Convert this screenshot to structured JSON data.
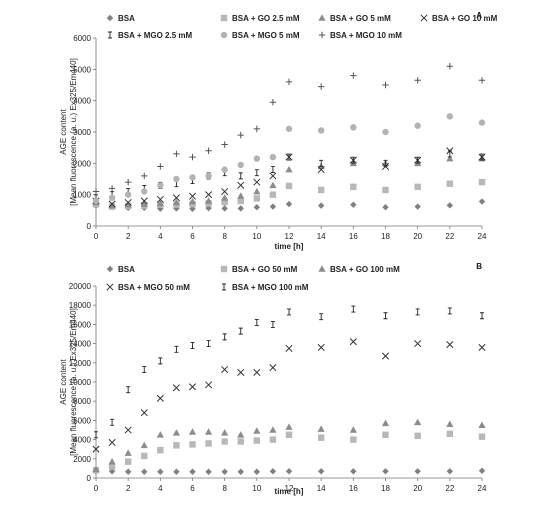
{
  "chart_data": [
    {
      "type": "scatter",
      "panel_label": "A",
      "xlabel": "time [h]",
      "ylabel_lines": [
        "AGE content",
        "[Mean fluorescence (a. u.) Ex325/Em440]"
      ],
      "xlim": [
        0,
        24
      ],
      "ylim": [
        0,
        6000
      ],
      "xticks": [
        0,
        2,
        4,
        6,
        8,
        10,
        12,
        14,
        16,
        18,
        20,
        22,
        24
      ],
      "yticks": [
        0,
        1000,
        2000,
        3000,
        4000,
        5000,
        6000
      ],
      "grid": false,
      "legend_position": "top",
      "series": [
        {
          "name": "BSA",
          "marker": "diamond",
          "color": "#808080",
          "x": [
            0,
            1,
            2,
            3,
            4,
            5,
            6,
            7,
            8,
            9,
            10,
            11,
            12,
            14,
            16,
            18,
            20,
            22,
            24
          ],
          "y": [
            650,
            600,
            580,
            580,
            550,
            560,
            550,
            570,
            560,
            560,
            600,
            620,
            700,
            650,
            680,
            600,
            620,
            660,
            780
          ]
        },
        {
          "name": "BSA + GO 2.5 mM",
          "marker": "square",
          "color": "#b8b8b8",
          "x": [
            0,
            1,
            2,
            3,
            4,
            5,
            6,
            7,
            8,
            9,
            10,
            11,
            12,
            14,
            16,
            18,
            20,
            22,
            24
          ],
          "y": [
            700,
            620,
            640,
            650,
            680,
            680,
            700,
            720,
            760,
            800,
            880,
            1000,
            1280,
            1150,
            1250,
            1150,
            1250,
            1350,
            1400
          ]
        },
        {
          "name": "BSA + GO 5 mM",
          "marker": "triangle",
          "color": "#8c8c8c",
          "x": [
            0,
            1,
            2,
            3,
            4,
            5,
            6,
            7,
            8,
            9,
            10,
            11,
            12,
            14,
            16,
            18,
            20,
            22,
            24
          ],
          "y": [
            750,
            650,
            680,
            700,
            720,
            750,
            780,
            800,
            900,
            960,
            1100,
            1300,
            1800,
            1900,
            2000,
            2000,
            2000,
            2150,
            2150
          ]
        },
        {
          "name": "BSA + GO 10 mM",
          "marker": "x",
          "color": "#333333",
          "x": [
            0,
            1,
            2,
            3,
            4,
            5,
            6,
            7,
            8,
            9,
            10,
            11,
            12,
            14,
            16,
            18,
            20,
            22,
            24
          ],
          "y": [
            800,
            700,
            750,
            800,
            850,
            900,
            950,
            1000,
            1100,
            1300,
            1400,
            1600,
            2200,
            1800,
            2100,
            1900,
            2100,
            2400,
            2200
          ]
        },
        {
          "name": "BSA + MGO 2.5 mM",
          "marker": "bar",
          "color": "#222222",
          "x": [
            0,
            1,
            2,
            3,
            4,
            5,
            6,
            7,
            8,
            9,
            10,
            11,
            12,
            14,
            16,
            18,
            20,
            22,
            24
          ],
          "y": [
            900,
            1000,
            1100,
            1200,
            1300,
            1350,
            1450,
            1600,
            1700,
            1600,
            1700,
            1800,
            2200,
            2000,
            2100,
            2000,
            2100,
            2300,
            2200
          ]
        },
        {
          "name": "BSA + MGO 5 mM",
          "marker": "circle",
          "color": "#b3b3b3",
          "x": [
            0,
            1,
            2,
            3,
            4,
            5,
            6,
            7,
            8,
            9,
            10,
            11,
            12,
            14,
            16,
            18,
            20,
            22,
            24
          ],
          "y": [
            800,
            900,
            1000,
            1100,
            1300,
            1500,
            1550,
            1600,
            1800,
            1950,
            2150,
            2200,
            3100,
            3050,
            3150,
            3000,
            3200,
            3500,
            3300
          ]
        },
        {
          "name": "BSA + MGO 10 mM",
          "marker": "plus",
          "color": "#555555",
          "x": [
            0,
            1,
            2,
            3,
            4,
            5,
            6,
            7,
            8,
            9,
            10,
            11,
            12,
            14,
            16,
            18,
            20,
            22,
            24
          ],
          "y": [
            1100,
            1200,
            1400,
            1600,
            1900,
            2300,
            2200,
            2400,
            2600,
            2900,
            3100,
            3950,
            4600,
            4450,
            4800,
            4500,
            4650,
            5100,
            4650
          ]
        }
      ]
    },
    {
      "type": "scatter",
      "panel_label": "B",
      "xlabel": "time [h]",
      "ylabel_lines": [
        "AGE content",
        "[Mean fluorescence (a. u.) Ex325/Em440]"
      ],
      "xlim": [
        0,
        24
      ],
      "ylim": [
        0,
        20000
      ],
      "xticks": [
        0,
        2,
        4,
        6,
        8,
        10,
        12,
        14,
        16,
        18,
        20,
        22,
        24
      ],
      "yticks": [
        0,
        2000,
        4000,
        6000,
        8000,
        10000,
        12000,
        14000,
        16000,
        18000,
        20000
      ],
      "grid": false,
      "legend_position": "top",
      "series": [
        {
          "name": "BSA",
          "marker": "diamond",
          "color": "#808080",
          "x": [
            0,
            1,
            2,
            3,
            4,
            5,
            6,
            7,
            8,
            9,
            10,
            11,
            12,
            14,
            16,
            18,
            20,
            22,
            24
          ],
          "y": [
            700,
            700,
            650,
            650,
            650,
            650,
            650,
            650,
            650,
            650,
            650,
            700,
            700,
            700,
            700,
            700,
            700,
            700,
            750
          ]
        },
        {
          "name": "BSA + GO 50 mM",
          "marker": "square",
          "color": "#b8b8b8",
          "x": [
            0,
            1,
            2,
            3,
            4,
            5,
            6,
            7,
            8,
            9,
            10,
            11,
            12,
            14,
            16,
            18,
            20,
            22,
            24
          ],
          "y": [
            800,
            1200,
            1700,
            2300,
            2900,
            3400,
            3500,
            3600,
            3800,
            3800,
            3900,
            4000,
            4500,
            4200,
            4000,
            4500,
            4400,
            4600,
            4300
          ]
        },
        {
          "name": "BSA + GO 100 mM",
          "marker": "triangle",
          "color": "#8c8c8c",
          "x": [
            0,
            1,
            2,
            3,
            4,
            5,
            6,
            7,
            8,
            9,
            10,
            11,
            12,
            14,
            16,
            18,
            20,
            22,
            24
          ],
          "y": [
            900,
            1700,
            2600,
            3400,
            4500,
            4700,
            4800,
            4800,
            4700,
            4500,
            4900,
            5000,
            5300,
            5100,
            5000,
            5700,
            5800,
            5600,
            5500
          ]
        },
        {
          "name": "BSA + MGO 50 mM",
          "marker": "x",
          "color": "#333333",
          "x": [
            0,
            1,
            2,
            3,
            4,
            5,
            6,
            7,
            8,
            9,
            10,
            11,
            12,
            14,
            16,
            18,
            20,
            22,
            24
          ],
          "y": [
            3000,
            3700,
            5000,
            6800,
            8300,
            9400,
            9500,
            9700,
            11300,
            11000,
            11000,
            11500,
            13500,
            13600,
            14200,
            12700,
            14000,
            13900,
            13600
          ]
        },
        {
          "name": "BSA + MGO 100 mM",
          "marker": "bar",
          "color": "#222222",
          "x": [
            0,
            1,
            2,
            3,
            4,
            5,
            6,
            7,
            8,
            9,
            10,
            11,
            12,
            14,
            16,
            18,
            20,
            22,
            24
          ],
          "y": [
            4500,
            5800,
            9200,
            11300,
            12200,
            13400,
            13800,
            14000,
            14700,
            15300,
            16200,
            16000,
            17300,
            16800,
            17600,
            16900,
            17300,
            17400,
            16900
          ]
        }
      ]
    }
  ]
}
